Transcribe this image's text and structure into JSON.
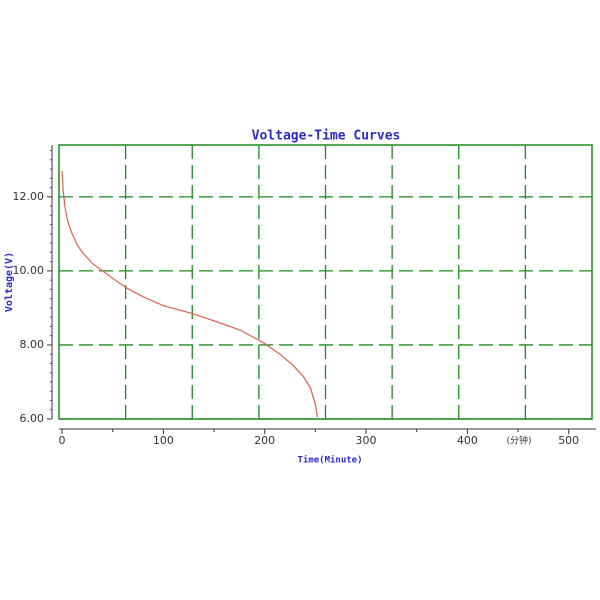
{
  "chart_data": {
    "type": "line",
    "title": "Voltage-Time Curves",
    "xlabel": "Time(Minute)",
    "ylabel": "Voltage(V)",
    "x_unit_note": "(分钟)",
    "x": [
      0,
      1,
      3,
      6,
      10,
      15,
      20,
      30,
      40,
      50,
      63,
      80,
      100,
      128,
      150,
      176,
      200,
      215,
      228,
      238,
      245,
      250,
      252
    ],
    "series": [
      {
        "name": "Voltage",
        "color": "#e0604f",
        "values": [
          12.7,
          12.2,
          11.7,
          11.3,
          11.0,
          10.7,
          10.5,
          10.2,
          10.0,
          9.8,
          9.55,
          9.3,
          9.06,
          8.85,
          8.65,
          8.4,
          8.04,
          7.75,
          7.45,
          7.15,
          6.85,
          6.4,
          6.05
        ]
      }
    ],
    "xlim": [
      -3,
      523
    ],
    "xticks": [
      0,
      100,
      200,
      300,
      400,
      500
    ],
    "ylim": [
      6,
      13.4
    ],
    "yticks": [
      {
        "value": 6,
        "label": "6.00"
      },
      {
        "value": 8,
        "label": "8.00"
      },
      {
        "value": 10,
        "label": "10.00"
      },
      {
        "value": 12,
        "label": "12.00"
      }
    ],
    "grid": true,
    "grid_color": "#1e8c1e"
  }
}
